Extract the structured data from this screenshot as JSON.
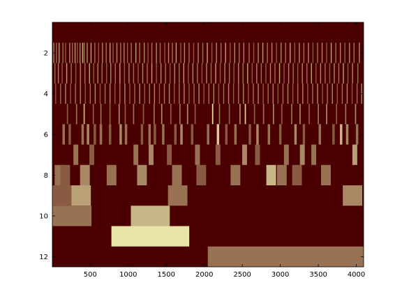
{
  "chart_data": {
    "type": "heatmap",
    "title": "",
    "xlabel": "",
    "ylabel": "",
    "xlim": [
      1,
      4096
    ],
    "ylim": [
      12.5,
      0.5
    ],
    "grid": false,
    "x_ticks": [
      500,
      1000,
      1500,
      2000,
      2500,
      3000,
      3500,
      4000
    ],
    "y_ticks": [
      2,
      4,
      6,
      8,
      10,
      12
    ],
    "colors": {
      "background": "#4a0000",
      "low": "#4a0000",
      "high": "#e8e4a8",
      "axis": "#000000"
    },
    "rows": [
      {
        "row": 1,
        "cells": []
      },
      {
        "row": 2,
        "cells": [
          [
            20,
            0.6
          ],
          [
            55,
            0.5
          ],
          [
            90,
            0.7
          ],
          [
            140,
            0.5
          ],
          [
            175,
            0.4
          ],
          [
            230,
            0.6
          ],
          [
            265,
            0.5
          ],
          [
            300,
            0.7
          ],
          [
            330,
            0.4
          ],
          [
            365,
            0.6
          ],
          [
            400,
            0.8
          ],
          [
            420,
            0.5
          ],
          [
            460,
            0.6
          ],
          [
            510,
            0.7
          ],
          [
            560,
            0.5
          ],
          [
            610,
            0.4
          ],
          [
            660,
            0.6
          ],
          [
            710,
            0.5
          ],
          [
            760,
            0.7
          ],
          [
            800,
            0.4
          ],
          [
            850,
            0.6
          ],
          [
            900,
            0.5
          ],
          [
            945,
            0.6
          ],
          [
            990,
            0.4
          ],
          [
            1040,
            0.5
          ],
          [
            1100,
            0.7
          ],
          [
            1150,
            0.5
          ],
          [
            1210,
            0.6
          ],
          [
            1260,
            0.4
          ],
          [
            1310,
            0.5
          ],
          [
            1370,
            0.6
          ],
          [
            1420,
            0.5
          ],
          [
            1480,
            0.4
          ],
          [
            1530,
            0.6
          ],
          [
            1580,
            0.5
          ],
          [
            1630,
            0.7
          ],
          [
            1690,
            0.4
          ],
          [
            1740,
            0.6
          ],
          [
            1800,
            0.5
          ],
          [
            1860,
            0.4
          ],
          [
            1920,
            0.6
          ],
          [
            1980,
            0.5
          ],
          [
            2040,
            0.7
          ],
          [
            2100,
            0.4
          ],
          [
            2160,
            0.6
          ],
          [
            2220,
            0.5
          ],
          [
            2280,
            0.7
          ],
          [
            2340,
            0.4
          ],
          [
            2400,
            0.6
          ],
          [
            2460,
            0.5
          ],
          [
            2520,
            0.6
          ],
          [
            2590,
            0.5
          ],
          [
            2650,
            0.4
          ],
          [
            2710,
            0.6
          ],
          [
            2770,
            0.7
          ],
          [
            2830,
            0.5
          ],
          [
            2890,
            0.6
          ],
          [
            2950,
            0.4
          ],
          [
            3010,
            0.6
          ],
          [
            3070,
            0.5
          ],
          [
            3130,
            0.7
          ],
          [
            3190,
            0.4
          ],
          [
            3250,
            0.6
          ],
          [
            3310,
            0.5
          ],
          [
            3370,
            0.6
          ],
          [
            3430,
            0.4
          ],
          [
            3490,
            0.5
          ],
          [
            3550,
            0.6
          ],
          [
            3610,
            0.4
          ],
          [
            3670,
            0.7
          ],
          [
            3730,
            0.5
          ],
          [
            3790,
            0.6
          ],
          [
            3850,
            0.4
          ],
          [
            3910,
            0.6
          ],
          [
            3970,
            0.5
          ],
          [
            4040,
            0.6
          ]
        ]
      },
      {
        "row": 3,
        "cells": [
          [
            35,
            0.5
          ],
          [
            80,
            0.6
          ],
          [
            130,
            0.4
          ],
          [
            190,
            0.7
          ],
          [
            250,
            0.5
          ],
          [
            310,
            0.4
          ],
          [
            370,
            0.6
          ],
          [
            430,
            0.5
          ],
          [
            490,
            0.7
          ],
          [
            545,
            0.4
          ],
          [
            600,
            0.6
          ],
          [
            655,
            0.5
          ],
          [
            715,
            0.4
          ],
          [
            770,
            0.6
          ],
          [
            830,
            0.5
          ],
          [
            890,
            0.7
          ],
          [
            950,
            0.4
          ],
          [
            1010,
            0.6
          ],
          [
            1070,
            0.5
          ],
          [
            1130,
            0.4
          ],
          [
            1190,
            0.6
          ],
          [
            1250,
            0.5
          ],
          [
            1310,
            0.7
          ],
          [
            1370,
            0.4
          ],
          [
            1430,
            0.6
          ],
          [
            1490,
            0.5
          ],
          [
            1550,
            0.4
          ],
          [
            1610,
            0.6
          ],
          [
            1670,
            0.5
          ],
          [
            1730,
            0.7
          ],
          [
            1790,
            0.4
          ],
          [
            1850,
            0.6
          ],
          [
            1910,
            0.5
          ],
          [
            1970,
            0.4
          ],
          [
            2030,
            0.6
          ],
          [
            2090,
            0.5
          ],
          [
            2150,
            0.7
          ],
          [
            2210,
            0.4
          ],
          [
            2270,
            0.6
          ],
          [
            2330,
            0.5
          ],
          [
            2390,
            0.4
          ],
          [
            2450,
            0.6
          ],
          [
            2510,
            0.5
          ],
          [
            2570,
            0.7
          ],
          [
            2630,
            0.4
          ],
          [
            2690,
            0.6
          ],
          [
            2750,
            0.5
          ],
          [
            2810,
            0.4
          ],
          [
            2870,
            0.6
          ],
          [
            2930,
            0.5
          ],
          [
            2990,
            0.7
          ],
          [
            3050,
            0.4
          ],
          [
            3110,
            0.6
          ],
          [
            3170,
            0.5
          ],
          [
            3230,
            0.4
          ],
          [
            3290,
            0.6
          ],
          [
            3350,
            0.5
          ],
          [
            3410,
            0.7
          ],
          [
            3470,
            0.4
          ],
          [
            3530,
            0.6
          ],
          [
            3590,
            0.5
          ],
          [
            3650,
            0.4
          ],
          [
            3710,
            0.6
          ],
          [
            3770,
            0.5
          ],
          [
            3830,
            0.7
          ],
          [
            3890,
            0.4
          ],
          [
            3950,
            0.6
          ],
          [
            4020,
            0.5
          ]
        ]
      },
      {
        "row": 4,
        "cells": [
          [
            45,
            0.4
          ],
          [
            110,
            0.5
          ],
          [
            175,
            0.6
          ],
          [
            240,
            0.4
          ],
          [
            305,
            0.5
          ],
          [
            370,
            0.6
          ],
          [
            435,
            0.4
          ],
          [
            500,
            0.5
          ],
          [
            565,
            0.6
          ],
          [
            630,
            0.4
          ],
          [
            695,
            0.5
          ],
          [
            760,
            0.6
          ],
          [
            825,
            0.4
          ],
          [
            890,
            0.5
          ],
          [
            955,
            0.6
          ],
          [
            1020,
            0.4
          ],
          [
            1085,
            0.5
          ],
          [
            1150,
            0.6
          ],
          [
            1215,
            0.4
          ],
          [
            1280,
            0.5
          ],
          [
            1345,
            0.6
          ],
          [
            1410,
            0.4
          ],
          [
            1475,
            0.5
          ],
          [
            1540,
            0.6
          ],
          [
            1605,
            0.4
          ],
          [
            1670,
            0.5
          ],
          [
            1735,
            0.6
          ],
          [
            1800,
            0.4
          ],
          [
            1865,
            0.5
          ],
          [
            1930,
            0.6
          ],
          [
            1995,
            0.4
          ],
          [
            2060,
            0.5
          ],
          [
            2125,
            0.6
          ],
          [
            2190,
            0.4
          ],
          [
            2255,
            0.5
          ],
          [
            2320,
            0.6
          ],
          [
            2385,
            0.4
          ],
          [
            2450,
            0.5
          ],
          [
            2515,
            0.6
          ],
          [
            2580,
            0.4
          ],
          [
            2645,
            0.5
          ],
          [
            2710,
            0.6
          ],
          [
            2775,
            0.4
          ],
          [
            2840,
            0.5
          ],
          [
            2905,
            0.6
          ],
          [
            2970,
            0.4
          ],
          [
            3035,
            0.5
          ],
          [
            3100,
            0.6
          ],
          [
            3165,
            0.4
          ],
          [
            3230,
            0.5
          ],
          [
            3295,
            0.6
          ],
          [
            3360,
            0.4
          ],
          [
            3425,
            0.5
          ],
          [
            3490,
            0.6
          ],
          [
            3555,
            0.4
          ],
          [
            3620,
            0.5
          ],
          [
            3685,
            0.6
          ],
          [
            3750,
            0.4
          ],
          [
            3815,
            0.5
          ],
          [
            3880,
            0.6
          ],
          [
            3945,
            0.4
          ],
          [
            4010,
            0.5
          ],
          [
            4070,
            0.6
          ]
        ]
      },
      {
        "row": 5,
        "cells": [
          [
            200,
            0.4
          ],
          [
            320,
            0.5
          ],
          [
            420,
            0.8
          ],
          [
            540,
            0.4
          ],
          [
            640,
            0.5
          ],
          [
            760,
            0.4
          ],
          [
            880,
            0.6
          ],
          [
            960,
            0.4
          ],
          [
            1070,
            0.5
          ],
          [
            1200,
            0.4
          ],
          [
            1340,
            0.5
          ],
          [
            1440,
            0.6
          ],
          [
            1560,
            0.4
          ],
          [
            1680,
            0.5
          ],
          [
            1780,
            0.6
          ],
          [
            1880,
            0.4
          ],
          [
            2110,
            1.0
          ],
          [
            2200,
            0.5
          ],
          [
            2330,
            0.4
          ],
          [
            2470,
            0.6
          ],
          [
            2540,
            0.9
          ],
          [
            2660,
            0.4
          ],
          [
            2780,
            0.5
          ],
          [
            2910,
            0.6
          ],
          [
            3020,
            0.4
          ],
          [
            3150,
            0.5
          ],
          [
            3260,
            0.6
          ],
          [
            3380,
            0.4
          ],
          [
            3500,
            0.5
          ],
          [
            3610,
            0.6
          ],
          [
            3740,
            0.4
          ],
          [
            3860,
            0.5
          ],
          [
            3990,
            0.6
          ]
        ]
      },
      {
        "row": 6,
        "cells": [
          [
            150,
            0.5
          ],
          [
            230,
            0.4
          ],
          [
            400,
            0.5
          ],
          [
            470,
            0.6
          ],
          [
            560,
            0.4
          ],
          [
            640,
            0.5
          ],
          [
            760,
            0.4
          ],
          [
            900,
            0.6
          ],
          [
            970,
            0.5
          ],
          [
            1180,
            0.4
          ],
          [
            1280,
            0.5
          ],
          [
            1350,
            0.4
          ],
          [
            1460,
            0.5
          ],
          [
            1620,
            0.4
          ],
          [
            1700,
            0.6
          ],
          [
            1840,
            0.4
          ],
          [
            2050,
            0.5
          ],
          [
            2180,
            0.9
          ],
          [
            2290,
            0.4
          ],
          [
            2410,
            0.5
          ],
          [
            2600,
            0.4
          ],
          [
            2700,
            0.6
          ],
          [
            2850,
            0.5
          ],
          [
            3000,
            0.4
          ],
          [
            3200,
            0.6
          ],
          [
            3310,
            0.4
          ],
          [
            3520,
            0.5
          ],
          [
            3700,
            0.4
          ],
          [
            3800,
            0.8
          ],
          [
            3880,
            0.6
          ],
          [
            4010,
            0.5
          ]
        ]
      },
      {
        "row": 7,
        "cells": [
          [
            310,
            0.5
          ],
          [
            520,
            0.4
          ],
          [
            1100,
            0.5
          ],
          [
            1300,
            0.6
          ],
          [
            1540,
            0.4
          ],
          [
            1910,
            0.5
          ],
          [
            2180,
            0.4
          ],
          [
            2530,
            0.6
          ],
          [
            2700,
            0.4
          ],
          [
            3080,
            0.5
          ],
          [
            3290,
            0.6
          ],
          [
            3440,
            0.5
          ],
          [
            3980,
            0.7
          ]
        ]
      },
      {
        "row": 8,
        "cells": [
          [
            95,
            0.5
          ],
          [
            170,
            0.4
          ],
          [
            430,
            0.6
          ],
          [
            780,
            0.5
          ],
          [
            1180,
            0.6
          ],
          [
            1640,
            0.5
          ],
          [
            1960,
            0.4
          ],
          [
            2410,
            0.5
          ],
          [
            2880,
            0.8
          ],
          [
            3020,
            0.5
          ],
          [
            3220,
            0.4
          ],
          [
            3600,
            0.5
          ]
        ]
      },
      {
        "row": 9,
        "cells": [
          [
            130,
            0.4
          ],
          [
            380,
            0.7
          ],
          [
            1650,
            0.5
          ],
          [
            3950,
            0.6
          ]
        ]
      },
      {
        "row": 10,
        "cells": [
          [
            260,
            0.5
          ],
          [
            1290,
            0.8
          ]
        ]
      },
      {
        "row": 11,
        "cells": [
          [
            1290,
            1.0
          ]
        ]
      },
      {
        "row": 12,
        "cells": [
          [
            3070,
            0.5
          ]
        ]
      }
    ]
  }
}
